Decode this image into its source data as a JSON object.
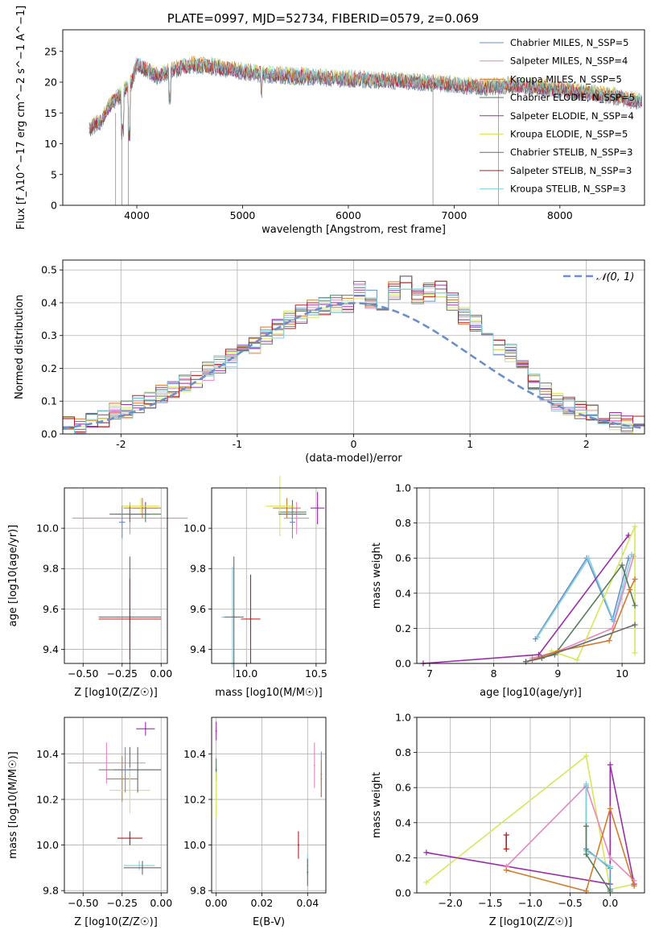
{
  "figure_title": "PLATE=0997, MJD=52734, FIBERID=0579, z=0.069",
  "chart_data": [
    {
      "id": "spectrum",
      "type": "line",
      "title": "PLATE=0997, MJD=52734, FIBERID=0579, z=0.069",
      "xlabel": "wavelength [Angstrom, rest frame]",
      "ylabel": "Flux [f_λ10^−17 erg cm^−2 s^−1 A^−1]",
      "xlim": [
        3300,
        8800
      ],
      "ylim": [
        0,
        28.5
      ],
      "xticks": [
        4000,
        5000,
        6000,
        7000,
        8000
      ],
      "yticks": [
        0,
        5,
        10,
        15,
        20,
        25
      ],
      "grid": false,
      "legend_position": "top-right",
      "spectrum_profile": {
        "x": [
          3550,
          3650,
          3750,
          3850,
          3950,
          4000,
          4100,
          4200,
          4350,
          4500,
          4700,
          4900,
          5100,
          5300,
          5500,
          5700,
          5900,
          6100,
          6300,
          6500,
          6700,
          6900,
          7100,
          7300,
          7500,
          7700,
          7900,
          8100,
          8300,
          8500,
          8700
        ],
        "y": [
          12.5,
          13.5,
          16.5,
          18,
          20,
          23,
          22,
          21,
          22,
          22.8,
          22.6,
          22,
          21.5,
          21.2,
          21,
          20.8,
          20.6,
          20.5,
          20.3,
          20.2,
          20,
          19.8,
          19.5,
          19.2,
          19.5,
          19.3,
          19,
          18.6,
          18.2,
          17.8,
          17
        ]
      },
      "series": [
        {
          "name": "Chabrier MILES, N_SSP=5",
          "color": "#6a8fce"
        },
        {
          "name": "Salpeter MILES, N_SSP=4",
          "color": "#e986c0"
        },
        {
          "name": "Kroupa MILES, N_SSP=5",
          "color": "#d17c2c"
        },
        {
          "name": "Chabrier ELODIE, N_SSP=5",
          "color": "#577d5e"
        },
        {
          "name": "Salpeter ELODIE, N_SSP=4",
          "color": "#9a2ea8"
        },
        {
          "name": "Kroupa ELODIE, N_SSP=5",
          "color": "#d6e85a"
        },
        {
          "name": "Chabrier STELIB, N_SSP=3",
          "color": "#6a6a6a"
        },
        {
          "name": "Salpeter STELIB, N_SSP=3",
          "color": "#b81e1e"
        },
        {
          "name": "Kroupa STELIB, N_SSP=3",
          "color": "#7fd3dc"
        }
      ]
    },
    {
      "id": "residual-histogram",
      "type": "histogram",
      "xlabel": "(data-model)/error",
      "ylabel": "Normed distribution",
      "xlim": [
        -2.5,
        2.5
      ],
      "ylim": [
        0,
        0.53
      ],
      "xticks": [
        -2,
        -1,
        0,
        1,
        2
      ],
      "yticks": [
        0.0,
        0.1,
        0.2,
        0.3,
        0.4,
        0.5
      ],
      "grid": true,
      "legend_position": "top-right",
      "legend": [
        "𝒩(0, 1)"
      ],
      "gaussian": {
        "mean": 0,
        "sigma": 1
      },
      "bin_edges_range": [
        -2.5,
        2.5
      ],
      "bins": 50,
      "hist_values": [
        0.03,
        0.024,
        0.036,
        0.05,
        0.064,
        0.075,
        0.09,
        0.1,
        0.12,
        0.14,
        0.155,
        0.17,
        0.19,
        0.21,
        0.23,
        0.25,
        0.27,
        0.3,
        0.32,
        0.35,
        0.365,
        0.38,
        0.39,
        0.395,
        0.4,
        0.44,
        0.41,
        0.4,
        0.44,
        0.46,
        0.42,
        0.43,
        0.44,
        0.4,
        0.36,
        0.34,
        0.3,
        0.27,
        0.25,
        0.2,
        0.16,
        0.13,
        0.1,
        0.085,
        0.075,
        0.06,
        0.05,
        0.04,
        0.03,
        0.025
      ]
    },
    {
      "id": "age-vs-metallicity",
      "type": "scatter",
      "xlabel": "Z [log10(Z/Z☉)]",
      "ylabel": "age [log10(age/yr)]",
      "xlim": [
        -0.62,
        0.04
      ],
      "ylim": [
        9.33,
        10.2
      ],
      "xticks": [
        -0.5,
        -0.25,
        0.0
      ],
      "xtick_labels": [
        "−0.50",
        "−0.25",
        "0.00"
      ],
      "yticks": [
        9.4,
        9.6,
        9.8,
        10.0
      ],
      "yticks_labels": [
        "9.4",
        "9.6",
        "9.8",
        "10.0"
      ],
      "grid": true,
      "points": [
        {
          "x": -0.2,
          "y": 10.05,
          "xerr": 0.37,
          "yerr": 0.08,
          "series": "Salpeter MILES, N_SSP=4"
        },
        {
          "x": -0.1,
          "y": 10.1,
          "xerr": 0.08,
          "yerr": 0.03,
          "series": "Salpeter ELODIE, N_SSP=4"
        },
        {
          "x": -0.1,
          "y": 10.07,
          "xerr": 0.1,
          "yerr": 0.04,
          "series": "Chabrier ELODIE, N_SSP=5"
        },
        {
          "x": -0.12,
          "y": 10.1,
          "xerr": 0.12,
          "yerr": 0.05,
          "series": "Kroupa MILES, N_SSP=5"
        },
        {
          "x": -0.13,
          "y": 10.11,
          "xerr": 0.12,
          "yerr": 0.04,
          "series": "Kroupa ELODIE, N_SSP=5"
        },
        {
          "x": -0.2,
          "y": 10.07,
          "xerr": 0.13,
          "yerr": 0.04,
          "series": "Chabrier STELIB, N_SSP=3"
        },
        {
          "x": -0.25,
          "y": 10.03,
          "xerr": 0.02,
          "yerr": 0.08,
          "series": "Chabrier MILES, N_SSP=5"
        },
        {
          "x": -0.2,
          "y": 9.56,
          "xerr": 0.2,
          "yerr": 0.18,
          "series": "Kroupa STELIB, N_SSP=3"
        },
        {
          "x": -0.2,
          "y": 9.56,
          "xerr": 0.2,
          "yerr": 0.3,
          "series": "Chabrier STELIB, N_SSP=3"
        },
        {
          "x": -0.2,
          "y": 9.55,
          "xerr": 0.2,
          "yerr": 0.2,
          "series": "Salpeter STELIB, N_SSP=3"
        }
      ]
    },
    {
      "id": "age-vs-mass",
      "type": "scatter",
      "xlabel": "mass [log10(M/M☉)]",
      "ylabel": "",
      "xlim": [
        9.75,
        10.57
      ],
      "ylim": [
        9.33,
        10.2
      ],
      "xticks": [
        10.0,
        10.5
      ],
      "xtick_labels": [
        "10.0",
        "10.5"
      ],
      "yticks": [
        9.4,
        9.6,
        9.8,
        10.0
      ],
      "yticks_labels": [
        "9.4",
        "9.6",
        "9.8",
        "10.0"
      ],
      "grid": true,
      "points": [
        {
          "x": 10.36,
          "y": 10.05,
          "xerr": 0.09,
          "yerr": 0.08,
          "series": "Salpeter MILES, N_SSP=4"
        },
        {
          "x": 10.51,
          "y": 10.1,
          "xerr": 0.05,
          "yerr": 0.08,
          "series": "Salpeter ELODIE, N_SSP=4"
        },
        {
          "x": 10.33,
          "y": 10.08,
          "xerr": 0.1,
          "yerr": 0.06,
          "series": "Chabrier ELODIE, N_SSP=5"
        },
        {
          "x": 10.29,
          "y": 10.1,
          "xerr": 0.1,
          "yerr": 0.05,
          "series": "Kroupa MILES, N_SSP=5"
        },
        {
          "x": 10.24,
          "y": 10.11,
          "xerr": 0.1,
          "yerr": 0.15,
          "series": "Kroupa ELODIE, N_SSP=5"
        },
        {
          "x": 10.33,
          "y": 10.07,
          "xerr": 0.1,
          "yerr": 0.04,
          "series": "Chabrier STELIB, N_SSP=3"
        },
        {
          "x": 10.33,
          "y": 10.03,
          "xerr": 0.02,
          "yerr": 0.08,
          "series": "Chabrier MILES, N_SSP=5"
        },
        {
          "x": 9.9,
          "y": 9.56,
          "xerr": 0.08,
          "yerr": 0.25,
          "series": "Kroupa STELIB, N_SSP=3"
        },
        {
          "x": 9.91,
          "y": 9.56,
          "xerr": 0.07,
          "yerr": 0.3,
          "series": "Chabrier STELIB, N_SSP=3"
        },
        {
          "x": 10.03,
          "y": 9.55,
          "xerr": 0.07,
          "yerr": 0.22,
          "series": "Salpeter STELIB, N_SSP=3"
        }
      ]
    },
    {
      "id": "mass-weight-vs-age",
      "type": "line",
      "xlabel": "age [log10(age/yr)]",
      "ylabel": "mass weight",
      "xlim": [
        6.8,
        10.35
      ],
      "ylim": [
        0,
        1.0
      ],
      "xticks": [
        7,
        8,
        9,
        10
      ],
      "xtick_labels": [
        "7",
        "8",
        "9",
        "10"
      ],
      "yticks": [
        0.0,
        0.2,
        0.4,
        0.6,
        0.8,
        1.0
      ],
      "yticks_labels": [
        "0.0",
        "0.2",
        "0.4",
        "0.6",
        "0.8",
        "1.0"
      ],
      "grid": true,
      "lines": [
        {
          "series": "Chabrier MILES, N_SSP=5",
          "x": [
            8.65,
            9.45,
            9.85,
            10.1
          ],
          "y": [
            0.14,
            0.6,
            0.25,
            0.6
          ]
        },
        {
          "series": "Kroupa STELIB, N_SSP=3",
          "x": [
            8.68,
            9.48,
            9.87,
            10.15
          ],
          "y": [
            0.15,
            0.6,
            0.24,
            0.62
          ]
        },
        {
          "series": "Salpeter MILES, N_SSP=4",
          "x": [
            8.6,
            9.0,
            9.85,
            10.18
          ],
          "y": [
            0.03,
            0.07,
            0.2,
            0.61
          ]
        },
        {
          "series": "Salpeter ELODIE, N_SSP=4",
          "x": [
            6.9,
            8.7,
            10.1
          ],
          "y": [
            0.0,
            0.05,
            0.73
          ]
        },
        {
          "series": "Kroupa ELODIE, N_SSP=5",
          "x": [
            8.9,
            9.3,
            10.2,
            10.2
          ],
          "y": [
            0.07,
            0.02,
            0.78,
            0.06
          ]
        },
        {
          "series": "Chabrier ELODIE, N_SSP=5",
          "x": [
            8.5,
            8.95,
            10.0,
            10.2
          ],
          "y": [
            0.01,
            0.05,
            0.56,
            0.33
          ]
        },
        {
          "series": "Kroupa MILES, N_SSP=5",
          "x": [
            8.6,
            9.0,
            9.8,
            10.12,
            10.2
          ],
          "y": [
            0.02,
            0.07,
            0.13,
            0.42,
            0.48
          ]
        },
        {
          "series": "Chabrier STELIB, N_SSP=3",
          "x": [
            8.5,
            8.75,
            10.2
          ],
          "y": [
            0.01,
            0.03,
            0.22
          ]
        }
      ]
    },
    {
      "id": "mass-vs-metallicity",
      "type": "scatter",
      "xlabel": "Z [log10(Z/Z☉)]",
      "ylabel": "mass [log10(M/M☉)]",
      "xlim": [
        -0.62,
        0.04
      ],
      "ylim": [
        9.79,
        10.56
      ],
      "xticks": [
        -0.5,
        -0.25,
        0.0
      ],
      "xtick_labels": [
        "−0.50",
        "−0.25",
        "0.00"
      ],
      "yticks": [
        9.8,
        10.0,
        10.2,
        10.4
      ],
      "yticks_labels": [
        "9.8",
        "10.0",
        "10.2",
        "10.4"
      ],
      "grid": true,
      "points": [
        {
          "x": -0.35,
          "y": 10.36,
          "xerr": 0.25,
          "yerr": 0.09,
          "series": "Salpeter MILES, N_SSP=4"
        },
        {
          "x": -0.1,
          "y": 10.51,
          "xerr": 0.06,
          "yerr": 0.03,
          "series": "Salpeter ELODIE, N_SSP=4"
        },
        {
          "x": -0.2,
          "y": 10.33,
          "xerr": 0.2,
          "yerr": 0.1,
          "series": "Chabrier ELODIE, N_SSP=5"
        },
        {
          "x": -0.25,
          "y": 10.29,
          "xerr": 0.1,
          "yerr": 0.1,
          "series": "Kroupa MILES, N_SSP=5"
        },
        {
          "x": -0.2,
          "y": 10.24,
          "xerr": 0.13,
          "yerr": 0.1,
          "series": "Kroupa ELODIE, N_SSP=5"
        },
        {
          "x": -0.15,
          "y": 10.33,
          "xerr": 0.15,
          "yerr": 0.1,
          "series": "Chabrier STELIB, N_SSP=3"
        },
        {
          "x": -0.23,
          "y": 10.33,
          "xerr": 0.02,
          "yerr": 0.1,
          "series": "Chabrier MILES, N_SSP=5"
        },
        {
          "x": -0.2,
          "y": 10.03,
          "xerr": 0.08,
          "yerr": 0.03,
          "series": "Salpeter STELIB, N_SSP=3"
        },
        {
          "x": -0.14,
          "y": 9.91,
          "xerr": 0.1,
          "yerr": 0.02,
          "series": "Kroupa STELIB, N_SSP=3"
        },
        {
          "x": -0.12,
          "y": 9.9,
          "xerr": 0.12,
          "yerr": 0.03,
          "series": "Chabrier STELIB, N_SSP=3"
        }
      ]
    },
    {
      "id": "mass-vs-ebv",
      "type": "scatter",
      "xlabel": "E(B-V)",
      "ylabel": "",
      "xlim": [
        -0.002,
        0.048
      ],
      "ylim": [
        9.79,
        10.56
      ],
      "xticks": [
        0.0,
        0.02,
        0.04
      ],
      "xtick_labels": [
        "0.00",
        "0.02",
        "0.04"
      ],
      "yticks": [
        9.8,
        10.0,
        10.2,
        10.4
      ],
      "yticks_labels": [
        "9.8",
        "10.0",
        "10.2",
        "10.4"
      ],
      "grid": true,
      "points": [
        {
          "x": 0.0,
          "y": 10.5,
          "xerr": 0,
          "yerr": 0.04,
          "series": "Salpeter ELODIE, N_SSP=4"
        },
        {
          "x": 0.0,
          "y": 10.33,
          "xerr": 0,
          "yerr": 0.05,
          "series": "Chabrier ELODIE, N_SSP=5"
        },
        {
          "x": 0.0,
          "y": 10.22,
          "xerr": 0,
          "yerr": 0.1,
          "series": "Kroupa ELODIE, N_SSP=5"
        },
        {
          "x": 0.043,
          "y": 10.35,
          "xerr": 0,
          "yerr": 0.1,
          "series": "Salpeter MILES, N_SSP=4"
        },
        {
          "x": 0.046,
          "y": 10.31,
          "xerr": 0,
          "yerr": 0.1,
          "series": "Chabrier MILES, N_SSP=5"
        },
        {
          "x": 0.046,
          "y": 10.29,
          "xerr": 0,
          "yerr": 0.08,
          "series": "Kroupa MILES, N_SSP=5"
        },
        {
          "x": 0.036,
          "y": 10.0,
          "xerr": 0,
          "yerr": 0.06,
          "series": "Salpeter STELIB, N_SSP=3"
        },
        {
          "x": 0.04,
          "y": 9.91,
          "xerr": 0,
          "yerr": 0.05,
          "series": "Kroupa STELIB, N_SSP=3"
        },
        {
          "x": 0.04,
          "y": 9.88,
          "xerr": 0,
          "yerr": 0.06,
          "series": "Chabrier STELIB, N_SSP=3"
        }
      ]
    },
    {
      "id": "mass-weight-vs-metallicity",
      "type": "line",
      "xlabel": "Z [log10(Z/Z☉)]",
      "ylabel": "mass weight",
      "xlim": [
        -2.42,
        0.43
      ],
      "ylim": [
        0,
        1.0
      ],
      "xticks": [
        -2.0,
        -1.5,
        -1.0,
        -0.5,
        0.0
      ],
      "xtick_labels": [
        "−2.0",
        "−1.5",
        "−1.0",
        "−0.5",
        "0.0"
      ],
      "yticks": [
        0.0,
        0.2,
        0.4,
        0.6,
        0.8,
        1.0
      ],
      "yticks_labels": [
        "0.0",
        "0.2",
        "0.4",
        "0.6",
        "0.8",
        "1.0"
      ],
      "grid": true,
      "lines": [
        {
          "series": "Kroupa ELODIE, N_SSP=5",
          "x": [
            -2.3,
            -0.3,
            0.0,
            0.3
          ],
          "y": [
            0.06,
            0.78,
            0.02,
            0.05
          ]
        },
        {
          "series": "Salpeter ELODIE, N_SSP=4",
          "x": [
            -2.3,
            0.0,
            0.0,
            0.3
          ],
          "y": [
            0.23,
            0.05,
            0.73,
            0.05
          ]
        },
        {
          "series": "Salpeter MILES, N_SSP=4",
          "x": [
            -1.3,
            -0.3,
            0.0,
            0.3
          ],
          "y": [
            0.15,
            0.61,
            0.2,
            0.07
          ]
        },
        {
          "series": "Kroupa MILES, N_SSP=5",
          "x": [
            -1.3,
            -0.3,
            0.0,
            0.3
          ],
          "y": [
            0.13,
            0.01,
            0.48,
            0.04
          ]
        },
        {
          "series": "Chabrier MILES, N_SSP=5",
          "x": [
            -0.3,
            -0.3,
            0.0,
            0.0
          ],
          "y": [
            0.6,
            0.25,
            0.14,
            0.02
          ]
        },
        {
          "series": "Kroupa STELIB, N_SSP=3",
          "x": [
            -0.3,
            -0.3,
            0.0
          ],
          "y": [
            0.62,
            0.24,
            0.15
          ]
        },
        {
          "series": "Chabrier ELODIE, N_SSP=5",
          "x": [
            -0.3,
            -0.3,
            0.0
          ],
          "y": [
            0.38,
            0.22,
            0.01
          ]
        },
        {
          "series": "Salpeter STELIB, N_SSP=3",
          "x": [
            -1.3,
            -1.3
          ],
          "y": [
            0.33,
            0.25
          ]
        }
      ]
    }
  ]
}
